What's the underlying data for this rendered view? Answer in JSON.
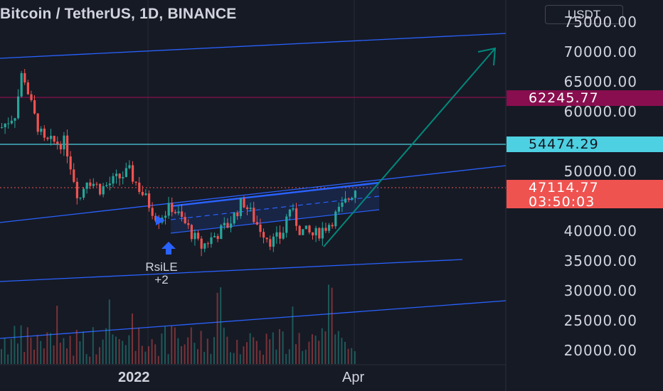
{
  "header": {
    "title": "Bitcoin / TetherUS, 1D, BINANCE",
    "currency": "USDT"
  },
  "price_axis": {
    "labels": [
      "75000.00",
      "70000.00",
      "65000.00",
      "60000.00",
      "50000.00",
      "40000.00",
      "35000.00",
      "30000.00",
      "25000.00",
      "20000.00"
    ]
  },
  "price_tags": {
    "resistance": "62245.77",
    "support": "54474.29",
    "last_price": "47114.77",
    "countdown": "03:50:03"
  },
  "time_axis": {
    "year_label": "2022",
    "month_label": "Apr"
  },
  "signal": {
    "name": "RsiLE",
    "count": "+2"
  },
  "colors": {
    "background": "#161a25",
    "up": "#26a69a",
    "down": "#ef5350",
    "trendline": "#2962ff",
    "resistance": "#880e4f",
    "support": "#4dd0e1",
    "arrow": "#00796b"
  },
  "chart_data": {
    "type": "candlestick",
    "interval": "1D",
    "ylim": [
      17500,
      77000
    ],
    "horizontal_levels": [
      62245.77,
      54474.29
    ],
    "last_price": 47114.77
  }
}
